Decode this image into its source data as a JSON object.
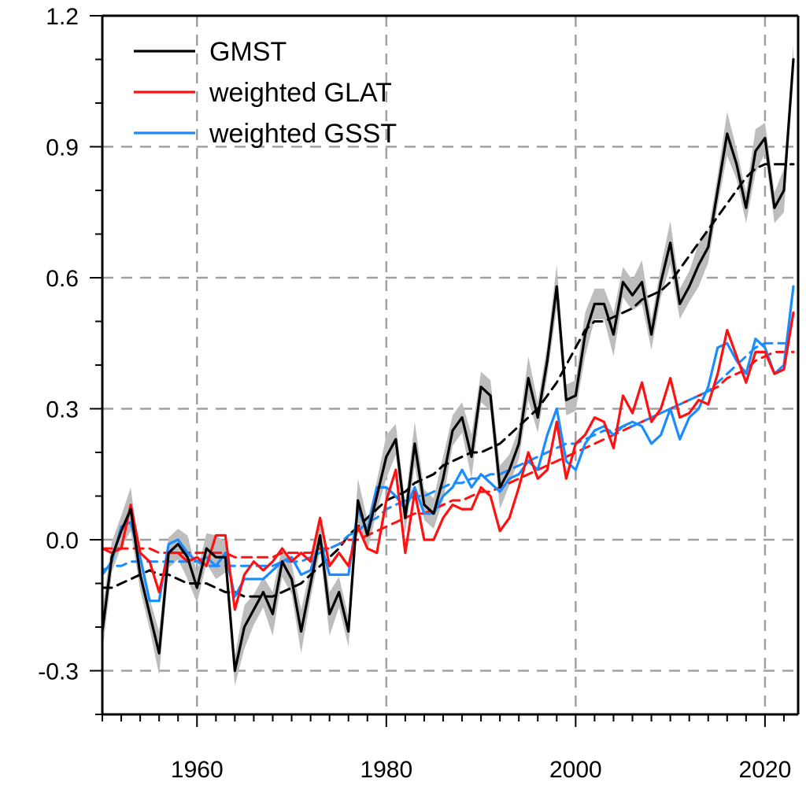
{
  "chart_data": {
    "type": "line",
    "title": "",
    "xlabel": "",
    "ylabel": "",
    "xlim": [
      1950,
      2023.5
    ],
    "ylim": [
      -0.4,
      1.2
    ],
    "x_ticks": [
      1960,
      1980,
      2000,
      2020
    ],
    "y_ticks": [
      -0.3,
      0.0,
      0.3,
      0.6,
      0.9,
      1.2
    ],
    "y_tick_labels": [
      "-0.3",
      "0.0",
      "0.3",
      "0.6",
      "0.9",
      "1.2"
    ],
    "grid": true,
    "legend_position": "top-left",
    "x": [
      1950,
      1951,
      1952,
      1953,
      1954,
      1955,
      1956,
      1957,
      1958,
      1959,
      1960,
      1961,
      1962,
      1963,
      1964,
      1965,
      1966,
      1967,
      1968,
      1969,
      1970,
      1971,
      1972,
      1973,
      1974,
      1975,
      1976,
      1977,
      1978,
      1979,
      1980,
      1981,
      1982,
      1983,
      1984,
      1985,
      1986,
      1987,
      1988,
      1989,
      1990,
      1991,
      1992,
      1993,
      1994,
      1995,
      1996,
      1997,
      1998,
      1999,
      2000,
      2001,
      2002,
      2003,
      2004,
      2005,
      2006,
      2007,
      2008,
      2009,
      2010,
      2011,
      2012,
      2013,
      2014,
      2015,
      2016,
      2017,
      2018,
      2019,
      2020,
      2021,
      2022,
      2023
    ],
    "series": [
      {
        "name": "GMST",
        "color": "#000000",
        "style": "solid",
        "band": true,
        "band_color": "#bdbdbd",
        "values": [
          -0.21,
          -0.04,
          0.02,
          0.07,
          -0.08,
          -0.17,
          -0.26,
          -0.03,
          -0.01,
          -0.04,
          -0.11,
          -0.02,
          -0.04,
          -0.04,
          -0.3,
          -0.2,
          -0.16,
          -0.12,
          -0.17,
          -0.05,
          -0.09,
          -0.21,
          -0.1,
          0.01,
          -0.17,
          -0.12,
          -0.21,
          0.09,
          0.01,
          0.1,
          0.19,
          0.23,
          0.05,
          0.22,
          0.08,
          0.06,
          0.14,
          0.25,
          0.28,
          0.19,
          0.35,
          0.33,
          0.12,
          0.16,
          0.22,
          0.37,
          0.28,
          0.41,
          0.58,
          0.32,
          0.33,
          0.47,
          0.54,
          0.54,
          0.47,
          0.59,
          0.56,
          0.59,
          0.47,
          0.59,
          0.68,
          0.54,
          0.58,
          0.63,
          0.67,
          0.8,
          0.93,
          0.86,
          0.76,
          0.89,
          0.92,
          0.76,
          0.8,
          1.1
        ]
      },
      {
        "name": "",
        "color": "#000000",
        "style": "dashed",
        "values": [
          -0.11,
          -0.11,
          -0.1,
          -0.09,
          -0.08,
          -0.07,
          -0.08,
          -0.08,
          -0.09,
          -0.1,
          -0.1,
          -0.1,
          -0.11,
          -0.12,
          -0.12,
          -0.13,
          -0.13,
          -0.13,
          -0.13,
          -0.12,
          -0.11,
          -0.1,
          -0.08,
          -0.06,
          -0.04,
          -0.02,
          0.01,
          0.03,
          0.05,
          0.07,
          0.09,
          0.1,
          0.11,
          0.13,
          0.14,
          0.15,
          0.17,
          0.18,
          0.19,
          0.2,
          0.2,
          0.21,
          0.22,
          0.24,
          0.26,
          0.28,
          0.3,
          0.33,
          0.36,
          0.4,
          0.44,
          0.48,
          0.5,
          0.5,
          0.51,
          0.52,
          0.53,
          0.55,
          0.56,
          0.57,
          0.59,
          0.62,
          0.65,
          0.68,
          0.71,
          0.74,
          0.77,
          0.8,
          0.83,
          0.85,
          0.86,
          0.86,
          0.86,
          0.86
        ]
      },
      {
        "name": "weighted GLAT",
        "color": "#ff1111",
        "style": "solid",
        "values": [
          -0.02,
          -0.03,
          -0.02,
          0.08,
          -0.03,
          -0.05,
          -0.12,
          -0.03,
          -0.03,
          -0.05,
          -0.04,
          -0.06,
          0.01,
          0.01,
          -0.16,
          -0.08,
          -0.05,
          -0.07,
          -0.05,
          -0.02,
          -0.05,
          -0.03,
          -0.05,
          0.05,
          -0.06,
          -0.03,
          -0.06,
          0.03,
          -0.02,
          -0.03,
          0.09,
          0.16,
          -0.03,
          0.11,
          0.0,
          0.0,
          0.05,
          0.08,
          0.07,
          0.07,
          0.12,
          0.1,
          0.02,
          0.05,
          0.12,
          0.2,
          0.14,
          0.16,
          0.27,
          0.14,
          0.22,
          0.24,
          0.28,
          0.27,
          0.21,
          0.33,
          0.29,
          0.36,
          0.27,
          0.3,
          0.37,
          0.28,
          0.29,
          0.32,
          0.31,
          0.38,
          0.48,
          0.42,
          0.36,
          0.43,
          0.43,
          0.38,
          0.39,
          0.52
        ]
      },
      {
        "name": "",
        "color": "#ff1111",
        "style": "dashed",
        "values": [
          -0.02,
          -0.02,
          -0.02,
          -0.02,
          -0.02,
          -0.02,
          -0.03,
          -0.03,
          -0.03,
          -0.03,
          -0.03,
          -0.03,
          -0.03,
          -0.03,
          -0.04,
          -0.04,
          -0.04,
          -0.04,
          -0.04,
          -0.03,
          -0.03,
          -0.03,
          -0.03,
          -0.02,
          -0.02,
          -0.01,
          0.0,
          0.0,
          0.01,
          0.02,
          0.03,
          0.04,
          0.05,
          0.06,
          0.06,
          0.07,
          0.08,
          0.09,
          0.09,
          0.1,
          0.11,
          0.11,
          0.12,
          0.13,
          0.14,
          0.15,
          0.16,
          0.17,
          0.18,
          0.19,
          0.2,
          0.21,
          0.22,
          0.23,
          0.24,
          0.25,
          0.26,
          0.27,
          0.28,
          0.29,
          0.3,
          0.31,
          0.32,
          0.33,
          0.34,
          0.35,
          0.37,
          0.38,
          0.39,
          0.41,
          0.42,
          0.43,
          0.43,
          0.43
        ]
      },
      {
        "name": "weighted GSST",
        "color": "#1a8cff",
        "style": "solid",
        "values": [
          -0.08,
          -0.05,
          0.03,
          0.04,
          -0.04,
          -0.14,
          -0.14,
          -0.01,
          0.0,
          -0.03,
          -0.05,
          -0.04,
          -0.06,
          -0.03,
          -0.13,
          -0.09,
          -0.09,
          -0.09,
          -0.07,
          -0.05,
          -0.04,
          -0.08,
          -0.07,
          0.0,
          -0.08,
          -0.08,
          -0.08,
          0.07,
          0.02,
          0.12,
          0.12,
          0.1,
          0.07,
          0.12,
          0.06,
          0.06,
          0.1,
          0.12,
          0.16,
          0.12,
          0.15,
          0.13,
          0.11,
          0.14,
          0.15,
          0.18,
          0.16,
          0.24,
          0.3,
          0.18,
          0.16,
          0.22,
          0.25,
          0.26,
          0.24,
          0.26,
          0.27,
          0.26,
          0.22,
          0.24,
          0.3,
          0.23,
          0.28,
          0.3,
          0.35,
          0.44,
          0.45,
          0.41,
          0.38,
          0.46,
          0.44,
          0.38,
          0.4,
          0.58
        ]
      },
      {
        "name": "",
        "color": "#1a8cff",
        "style": "dashed",
        "values": [
          -0.07,
          -0.06,
          -0.06,
          -0.05,
          -0.05,
          -0.05,
          -0.05,
          -0.05,
          -0.05,
          -0.05,
          -0.05,
          -0.06,
          -0.06,
          -0.06,
          -0.06,
          -0.06,
          -0.06,
          -0.06,
          -0.06,
          -0.05,
          -0.05,
          -0.05,
          -0.04,
          -0.03,
          -0.02,
          -0.01,
          0.01,
          0.02,
          0.04,
          0.05,
          0.07,
          0.08,
          0.09,
          0.1,
          0.1,
          0.11,
          0.12,
          0.13,
          0.13,
          0.14,
          0.14,
          0.15,
          0.15,
          0.16,
          0.17,
          0.18,
          0.19,
          0.2,
          0.21,
          0.22,
          0.22,
          0.23,
          0.24,
          0.25,
          0.25,
          0.26,
          0.26,
          0.27,
          0.28,
          0.29,
          0.3,
          0.31,
          0.32,
          0.33,
          0.34,
          0.36,
          0.38,
          0.4,
          0.42,
          0.44,
          0.45,
          0.45,
          0.45,
          0.45
        ]
      }
    ]
  }
}
